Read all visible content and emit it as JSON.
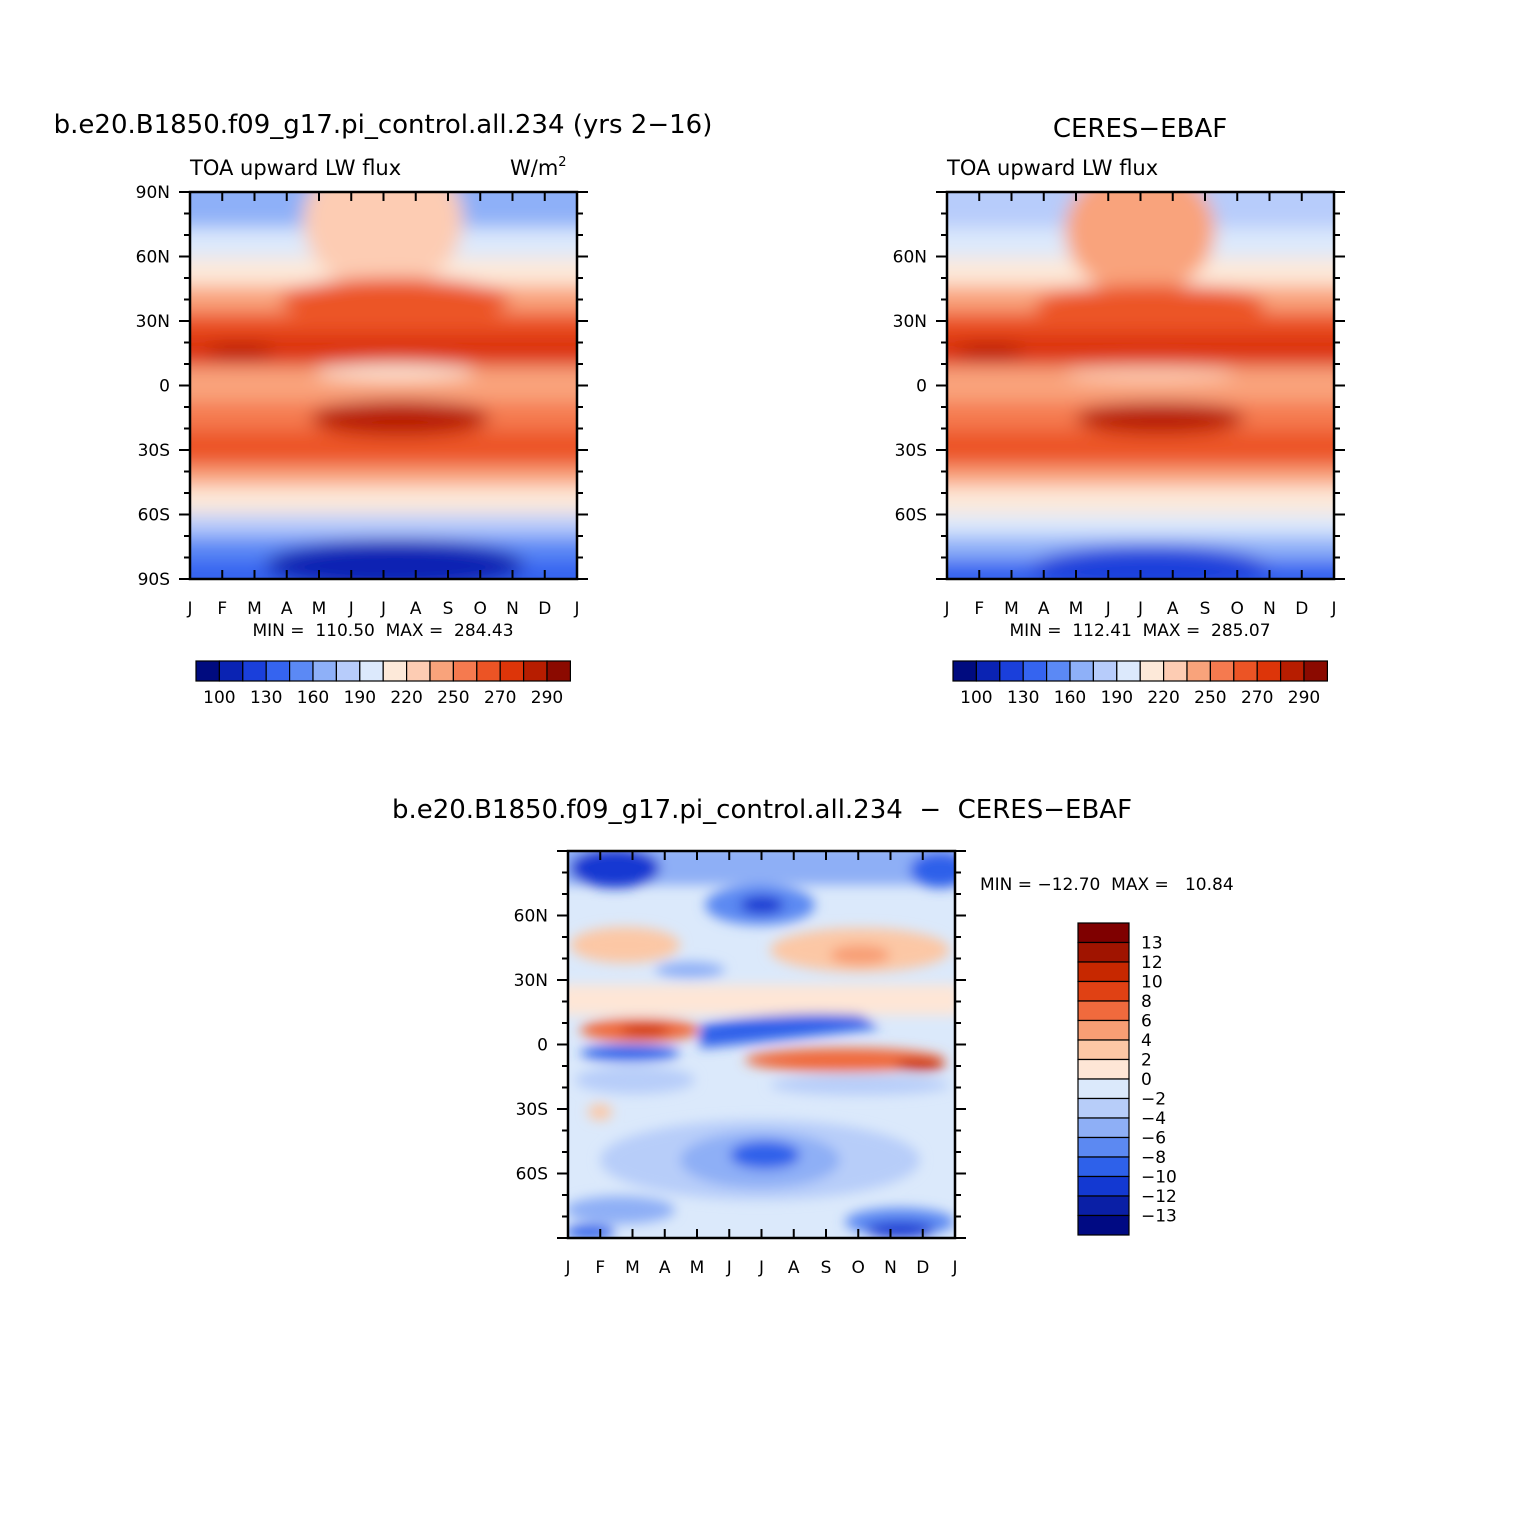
{
  "chart_data": [
    {
      "type": "heatmap",
      "title": "b.e20.B1850.f09_g17.pi_control.all.234 (yrs 2−16)",
      "left_label": "TOA upward LW flux",
      "units_label": "W/m",
      "units_sup": "2",
      "x_ticks": [
        "J",
        "F",
        "M",
        "A",
        "M",
        "J",
        "J",
        "A",
        "S",
        "O",
        "N",
        "D",
        "J"
      ],
      "y_ticks": [
        "90N",
        "60N",
        "30N",
        "0",
        "30S",
        "60S",
        "90S"
      ],
      "y_tick_values": [
        90,
        60,
        30,
        0,
        -30,
        -60,
        -90
      ],
      "ylim": [
        -90,
        90
      ],
      "stats": "MIN =  110.50  MAX =  284.43",
      "colorbar_ticks": [
        "100",
        "130",
        "160",
        "190",
        "220",
        "250",
        "270",
        "290"
      ]
    },
    {
      "type": "heatmap",
      "title": "CERES−EBAF",
      "left_label": "TOA upward LW flux",
      "x_ticks": [
        "J",
        "F",
        "M",
        "A",
        "M",
        "J",
        "J",
        "A",
        "S",
        "O",
        "N",
        "D",
        "J"
      ],
      "y_ticks": [
        "60N",
        "30N",
        "0",
        "30S",
        "60S"
      ],
      "y_tick_values": [
        60,
        30,
        0,
        -30,
        -60
      ],
      "ylim": [
        -90,
        90
      ],
      "stats": "MIN =  112.41  MAX =  285.07",
      "colorbar_ticks": [
        "100",
        "130",
        "160",
        "190",
        "220",
        "250",
        "270",
        "290"
      ]
    },
    {
      "type": "heatmap",
      "title": "b.e20.B1850.f09_g17.pi_control.all.234  −  CERES−EBAF",
      "x_ticks": [
        "J",
        "F",
        "M",
        "A",
        "M",
        "J",
        "J",
        "A",
        "S",
        "O",
        "N",
        "D",
        "J"
      ],
      "y_ticks": [
        "60N",
        "30N",
        "0",
        "30S",
        "60S"
      ],
      "y_tick_values": [
        60,
        30,
        0,
        -30,
        -60
      ],
      "ylim": [
        -90,
        90
      ],
      "stats": "MIN = −12.70  MAX =   10.84",
      "colorbar_ticks": [
        "13",
        "12",
        "10",
        "8",
        "6",
        "4",
        "2",
        "0",
        "−2",
        "−4",
        "−6",
        "−8",
        "−10",
        "−12",
        "−13"
      ]
    }
  ],
  "palette": {
    "abs": [
      "#000b7f",
      "#0a23b3",
      "#1a3fdb",
      "#3564f0",
      "#5b89f5",
      "#8eb0f8",
      "#b7ccfb",
      "#dce9fc",
      "#fde9d9",
      "#fdccb3",
      "#f9a37b",
      "#f57a4f",
      "#ec5425",
      "#dd3509",
      "#b71d00",
      "#8b0a00"
    ],
    "diff": [
      "#7f0000",
      "#a01400",
      "#c72800",
      "#e04114",
      "#f06a3d",
      "#f89e74",
      "#fcc7a5",
      "#fee6d6",
      "#dbe9fb",
      "#b7cdf9",
      "#8eaff6",
      "#5c89f2",
      "#2e61ea",
      "#1339d2",
      "#0a1fa6",
      "#000a83"
    ]
  }
}
